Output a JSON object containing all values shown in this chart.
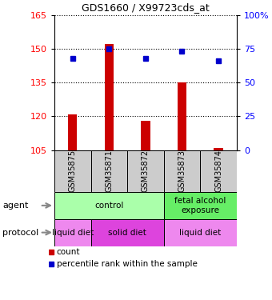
{
  "title": "GDS1660 / X99723cds_at",
  "samples": [
    "GSM35875",
    "GSM35871",
    "GSM35872",
    "GSM35873",
    "GSM35874"
  ],
  "count_values": [
    121,
    152,
    118,
    135,
    106
  ],
  "count_base": 105,
  "percentile_values": [
    68,
    75,
    68,
    73,
    66
  ],
  "ylim_left": [
    105,
    165
  ],
  "ylim_right": [
    0,
    100
  ],
  "yticks_left": [
    105,
    120,
    135,
    150,
    165
  ],
  "yticks_right": [
    0,
    25,
    50,
    75,
    100
  ],
  "ytick_labels_right": [
    "0",
    "25",
    "50",
    "75",
    "100%"
  ],
  "bar_color": "#cc0000",
  "dot_color": "#0000cc",
  "sample_bg_color": "#cccccc",
  "agent_configs": [
    {
      "text": "control",
      "start": 0,
      "end": 3,
      "color": "#aaffaa"
    },
    {
      "text": "fetal alcohol\nexposure",
      "start": 3,
      "end": 5,
      "color": "#66ee66"
    }
  ],
  "protocol_configs": [
    {
      "text": "liquid diet",
      "start": 0,
      "end": 1,
      "color": "#ee88ee"
    },
    {
      "text": "solid diet",
      "start": 1,
      "end": 3,
      "color": "#dd44dd"
    },
    {
      "text": "liquid diet",
      "start": 3,
      "end": 5,
      "color": "#ee88ee"
    }
  ],
  "left_label_color": "red",
  "right_label_color": "blue"
}
